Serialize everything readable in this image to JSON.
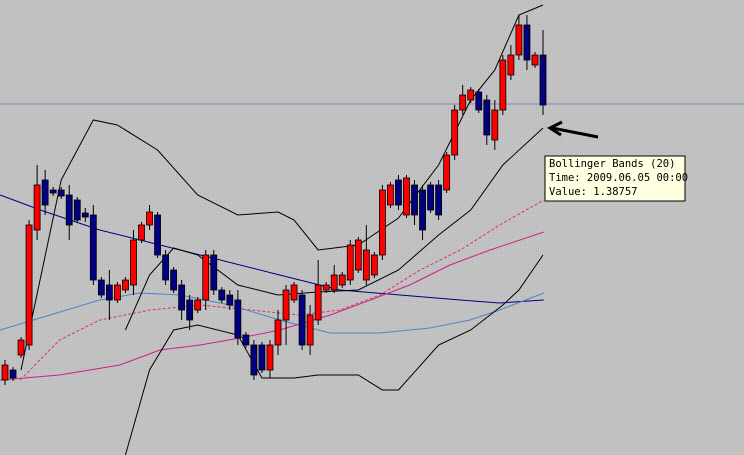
{
  "chart_data": {
    "type": "candlestick",
    "ylim": [
      1.2895,
      1.426
    ],
    "xlim": [
      -0.62,
      92.03
    ],
    "up_color": "#ff0000",
    "down_color": "#000080",
    "background": "#c0c0c0",
    "hline": 1.3948,
    "hline_color": "#8a8ab4",
    "open": [
      1.312,
      1.315,
      1.3195,
      1.3225,
      1.357,
      1.372,
      1.369,
      1.369,
      1.3675,
      1.366,
      1.3621,
      1.3615,
      1.342,
      1.3405,
      1.336,
      1.339,
      1.3405,
      1.354,
      1.3585,
      1.3615,
      1.3495,
      1.345,
      1.3405,
      1.336,
      1.333,
      1.336,
      1.3495,
      1.339,
      1.3375,
      1.336,
      1.3255,
      1.3225,
      1.3225,
      1.315,
      1.3225,
      1.33,
      1.336,
      1.3375,
      1.3225,
      1.33,
      1.339,
      1.339,
      1.3405,
      1.342,
      1.345,
      1.342,
      1.3435,
      1.3495,
      1.3645,
      1.372,
      1.3615,
      1.3705,
      1.369,
      1.3705,
      1.3705,
      1.369,
      1.3795,
      1.393,
      1.396,
      1.3984,
      1.396,
      1.384,
      1.393,
      1.4035,
      1.4095,
      1.4185,
      1.4065,
      1.4095
    ],
    "high": [
      1.318,
      1.3159,
      1.3249,
      1.36,
      1.3765,
      1.375,
      1.3699,
      1.3699,
      1.3705,
      1.3669,
      1.3636,
      1.3645,
      1.3429,
      1.345,
      1.3414,
      1.3429,
      1.357,
      1.3594,
      1.3645,
      1.3624,
      1.351,
      1.3459,
      1.342,
      1.3375,
      1.3369,
      1.351,
      1.351,
      1.3399,
      1.339,
      1.339,
      1.3264,
      1.324,
      1.3234,
      1.324,
      1.333,
      1.3405,
      1.3414,
      1.339,
      1.3345,
      1.348,
      1.3414,
      1.3465,
      1.3444,
      1.354,
      1.3549,
      1.3585,
      1.3504,
      1.3705,
      1.3714,
      1.3735,
      1.3735,
      1.372,
      1.3705,
      1.3714,
      1.372,
      1.3804,
      1.3945,
      1.4005,
      1.3999,
      1.3993,
      1.3975,
      1.396,
      1.4095,
      1.4125,
      1.4215,
      1.4215,
      1.4104,
      1.417
    ],
    "low": [
      1.3105,
      1.3117,
      1.3186,
      1.321,
      1.354,
      1.3615,
      1.3672,
      1.3663,
      1.354,
      1.3591,
      1.3594,
      1.3405,
      1.3366,
      1.33,
      1.3351,
      1.3381,
      1.3375,
      1.3531,
      1.357,
      1.3486,
      1.3405,
      1.3381,
      1.33,
      1.327,
      1.3321,
      1.333,
      1.3375,
      1.3351,
      1.333,
      1.3225,
      1.3216,
      1.312,
      1.3141,
      1.3126,
      1.3195,
      1.3225,
      1.3351,
      1.321,
      1.3195,
      1.3285,
      1.3381,
      1.3381,
      1.3396,
      1.3405,
      1.3441,
      1.3405,
      1.3426,
      1.348,
      1.3636,
      1.363,
      1.3606,
      1.3585,
      1.354,
      1.3621,
      1.36,
      1.3681,
      1.378,
      1.3915,
      1.3951,
      1.3921,
      1.3825,
      1.381,
      1.3915,
      1.402,
      1.408,
      1.405,
      1.4056,
      1.3915
    ],
    "close": [
      1.3165,
      1.3126,
      1.324,
      1.3585,
      1.3705,
      1.3645,
      1.3681,
      1.3672,
      1.3585,
      1.36,
      1.3609,
      1.342,
      1.3375,
      1.336,
      1.3405,
      1.342,
      1.354,
      1.3585,
      1.3624,
      1.3495,
      1.342,
      1.339,
      1.333,
      1.33,
      1.336,
      1.3495,
      1.339,
      1.336,
      1.3345,
      1.3246,
      1.3225,
      1.3135,
      1.315,
      1.3225,
      1.33,
      1.339,
      1.3405,
      1.3225,
      1.3315,
      1.3405,
      1.3405,
      1.3435,
      1.3435,
      1.3525,
      1.354,
      1.351,
      1.3495,
      1.369,
      1.3705,
      1.3645,
      1.3726,
      1.3615,
      1.357,
      1.363,
      1.3615,
      1.3795,
      1.393,
      1.3975,
      1.399,
      1.393,
      1.3855,
      1.393,
      1.408,
      1.4095,
      1.4185,
      1.408,
      1.4095,
      1.3945
    ],
    "lines": [
      {
        "color": "#000080",
        "x": [
          -0.6,
          4.4,
          11.8,
          19.3,
          26.8,
          34.2,
          41.7,
          49.2,
          56.7,
          61.6,
          67.1
        ],
        "values": [
          1.3675,
          1.363,
          1.357,
          1.3525,
          1.348,
          1.3435,
          1.339,
          1.3375,
          1.336,
          1.3351,
          1.336
        ]
      },
      {
        "color": "#4a86c8",
        "x": [
          -0.6,
          5.6,
          11.8,
          16.8,
          21.8,
          28.0,
          34.2,
          40.5,
          46.7,
          52.9,
          57.9,
          61.6,
          67.1
        ],
        "values": [
          1.327,
          1.3315,
          1.336,
          1.3381,
          1.3375,
          1.3345,
          1.33,
          1.3261,
          1.3261,
          1.3276,
          1.33,
          1.333,
          1.3381
        ]
      },
      {
        "color": "#d0208a",
        "x": [
          -0.6,
          6.8,
          14.3,
          19.3,
          24.3,
          29.3,
          34.2,
          40.5,
          45.5,
          50.4,
          55.4,
          60.4,
          67.1
        ],
        "values": [
          1.312,
          1.3135,
          1.3165,
          1.321,
          1.3225,
          1.3246,
          1.327,
          1.3315,
          1.336,
          1.3405,
          1.3465,
          1.351,
          1.3564
        ]
      },
      {
        "color": "#e0306a",
        "dash": "3,2",
        "x": [
          1.9,
          6.8,
          11.8,
          18.1,
          24.3,
          30.5,
          36.7,
          41.7,
          46.7,
          51.7,
          56.7,
          61.6,
          67.1
        ],
        "values": [
          1.312,
          1.324,
          1.33,
          1.333,
          1.3345,
          1.333,
          1.3315,
          1.333,
          1.3375,
          1.345,
          1.351,
          1.3585,
          1.366
        ]
      },
      {
        "color": "#000000",
        "x": [
          2,
          7,
          11,
          14,
          19,
          24,
          29,
          34,
          36,
          39,
          44,
          49,
          54,
          58,
          61,
          64,
          67
        ],
        "values": [
          1.315,
          1.372,
          1.39,
          1.3885,
          1.381,
          1.3675,
          1.3615,
          1.3624,
          1.36,
          1.351,
          1.3525,
          1.3606,
          1.3765,
          1.396,
          1.405,
          1.4215,
          1.4245
        ]
      },
      {
        "color": "#000000",
        "x": [
          15,
          18,
          21,
          24,
          29,
          34,
          39,
          44,
          49,
          54,
          58,
          62,
          67
        ],
        "values": [
          1.327,
          1.3435,
          1.3516,
          1.3495,
          1.3405,
          1.3375,
          1.3384,
          1.339,
          1.345,
          1.3555,
          1.363,
          1.3765,
          1.3876
        ]
      },
      {
        "color": "#000000",
        "x": [
          15,
          18,
          21,
          24,
          29,
          32,
          36,
          39,
          44,
          47,
          49,
          54,
          58,
          62,
          64,
          67
        ],
        "values": [
          1.2895,
          1.315,
          1.327,
          1.3285,
          1.3255,
          1.3126,
          1.3126,
          1.3135,
          1.3135,
          1.309,
          1.309,
          1.3225,
          1.327,
          1.3345,
          1.339,
          1.3495
        ]
      }
    ],
    "tooltip": [
      "Bollinger Bands (20)",
      "Time: 2009.06.05 00:00",
      "Value: 1.38757"
    ]
  }
}
